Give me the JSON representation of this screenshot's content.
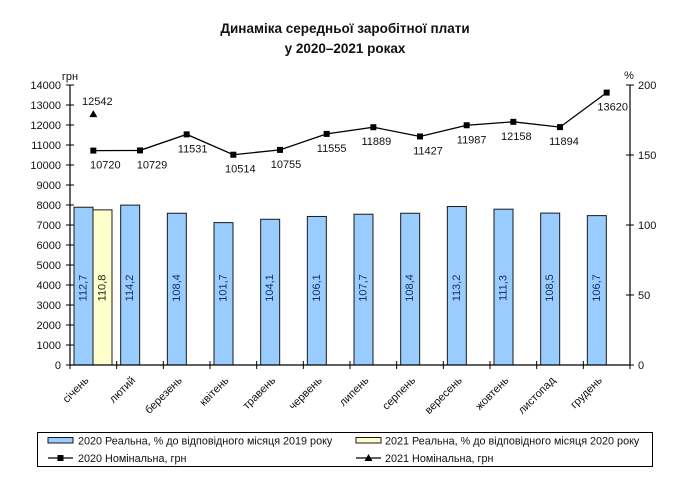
{
  "chart_data": {
    "type": "bar+line",
    "title": [
      "Динаміка середньої заробітної плати",
      "у 2020–2021 роках"
    ],
    "categories": [
      "січень",
      "лютий",
      "березень",
      "квітень",
      "травень",
      "червень",
      "липень",
      "серпень",
      "вересень",
      "жовтень",
      "листопад",
      "грудень"
    ],
    "y_left": {
      "unit": "грн",
      "ylim": [
        0,
        14000
      ],
      "ticks": [
        0,
        1000,
        2000,
        3000,
        4000,
        5000,
        6000,
        7000,
        8000,
        9000,
        10000,
        11000,
        12000,
        13000,
        14000
      ]
    },
    "y_right": {
      "unit": "%",
      "ylim": [
        0,
        200
      ],
      "ticks": [
        0,
        50,
        100,
        150,
        200
      ]
    },
    "grid": false,
    "legend_position": "bottom",
    "series": [
      {
        "name": "2020 Реальна, % до відповідного місяця 2019 року",
        "type": "bar",
        "axis": "right",
        "color": "#99CCFF",
        "label_color": "#1a2b5e",
        "values": [
          112.7,
          114.2,
          108.4,
          101.7,
          104.1,
          106.1,
          107.7,
          108.4,
          113.2,
          111.3,
          108.5,
          106.7
        ],
        "labels": [
          "112,7",
          "114,2",
          "108,4",
          "101,7",
          "104,1",
          "106,1",
          "107,7",
          "108,4",
          "113,2",
          "111,3",
          "108,5",
          "106,7"
        ]
      },
      {
        "name": "2021 Реальна, % до відповідного місяця 2020 року",
        "type": "bar",
        "axis": "right",
        "color": "#FFFFCC",
        "label_color": "#222222",
        "values": [
          110.8,
          null,
          null,
          null,
          null,
          null,
          null,
          null,
          null,
          null,
          null,
          null
        ],
        "labels": [
          "110,8",
          null,
          null,
          null,
          null,
          null,
          null,
          null,
          null,
          null,
          null,
          null
        ]
      },
      {
        "name": "2020 Номінальна, грн",
        "type": "line",
        "axis": "left",
        "marker": "square",
        "color": "#000000",
        "values": [
          10720,
          10729,
          11531,
          10514,
          10755,
          11555,
          11889,
          11427,
          11987,
          12158,
          11894,
          13620
        ]
      },
      {
        "name": "2021 Номінальна, грн",
        "type": "line",
        "axis": "left",
        "marker": "triangle",
        "color": "#000000",
        "values": [
          12542,
          null,
          null,
          null,
          null,
          null,
          null,
          null,
          null,
          null,
          null,
          null
        ]
      }
    ]
  }
}
